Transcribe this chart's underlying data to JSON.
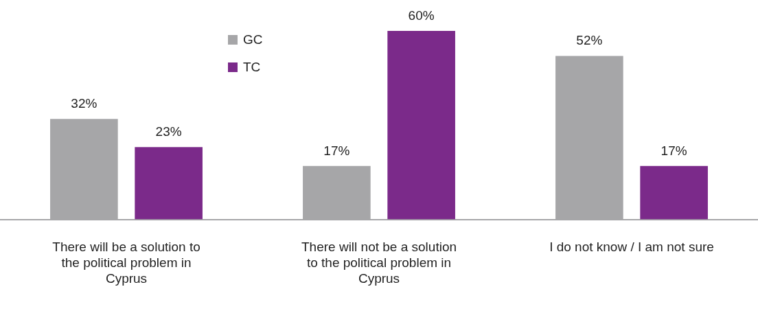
{
  "chart_data": {
    "type": "bar",
    "categories": [
      "There will be a solution to the political problem in Cyprus",
      "There will not be a solution to the political problem in Cyprus",
      "I do not know / I am not sure"
    ],
    "series": [
      {
        "name": "GC",
        "color": "#a6a6a8",
        "values": [
          32,
          17,
          52
        ],
        "value_labels": [
          "32%",
          "17%",
          "52%"
        ]
      },
      {
        "name": "TC",
        "color": "#7b2a8a",
        "values": [
          23,
          60,
          17
        ],
        "value_labels": [
          "23%",
          "60%",
          "17%"
        ]
      }
    ],
    "legend": "top left",
    "grid": false
  }
}
